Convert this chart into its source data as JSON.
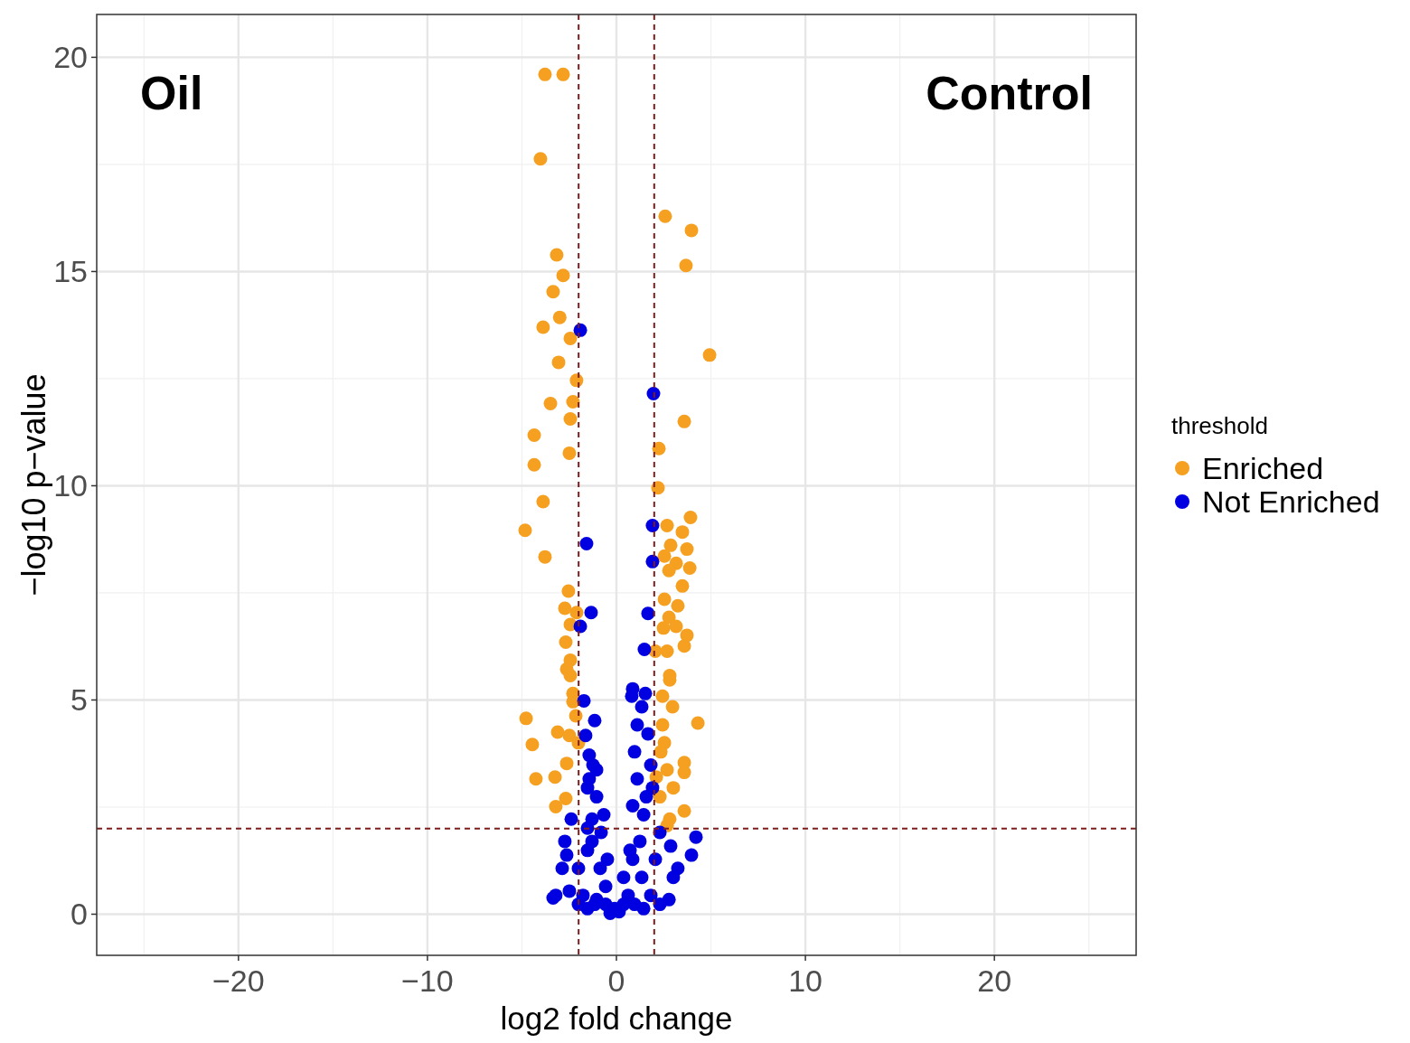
{
  "chart_data": {
    "type": "scatter",
    "xlabel": "log2 fold change",
    "ylabel": "−log10 p−value",
    "legend_title": "threshold",
    "annotations": [
      "Oil",
      "Control"
    ],
    "xlim": [
      -27.5,
      27.5
    ],
    "ylim": [
      -0.96,
      21
    ],
    "xticks": [
      {
        "value": -20,
        "label": "−20"
      },
      {
        "value": -10,
        "label": "−10"
      },
      0,
      10,
      20
    ],
    "yticks": [
      0,
      5,
      10,
      15,
      20
    ],
    "grid": true,
    "legend": "right",
    "marker": "circle",
    "ref_lines": [
      {
        "axis": "x",
        "value": -2,
        "color": "#7f1d1d",
        "line_style": "dashed"
      },
      {
        "axis": "x",
        "value": 2,
        "color": "#7f1d1d",
        "line_style": "dashed"
      },
      {
        "axis": "y",
        "value": 2,
        "color": "#7f1d1d",
        "line_style": "dashed"
      }
    ],
    "series": [
      {
        "name": "Enriched",
        "color": "#f5a020",
        "x": [
          -3.78,
          -2.82,
          -4.02,
          2.58,
          3.97,
          -3.16,
          3.68,
          -2.82,
          -3.35,
          -3.0,
          -3.88,
          -2.44,
          4.93,
          -3.06,
          -2.11,
          -3.49,
          -2.3,
          3.59,
          -2.44,
          -4.35,
          -2.49,
          2.25,
          -4.35,
          2.2,
          -3.88,
          3.92,
          -4.83,
          -3.78,
          2.68,
          3.49,
          2.87,
          3.73,
          2.54,
          3.16,
          3.88,
          2.78,
          3.49,
          2.54,
          3.25,
          2.78,
          3.16,
          3.73,
          2.49,
          3.59,
          2.68,
          2.06,
          2.82,
          2.97,
          2.44,
          -2.54,
          -2.73,
          -2.11,
          -2.44,
          -2.68,
          -2.44,
          -2.63,
          -2.44,
          -2.3,
          -2.3,
          -4.78,
          -4.45,
          -4.26,
          -3.25,
          -3.11,
          -2.49,
          -2.63,
          -2.68,
          -3.21,
          -2.15,
          -2.01,
          2.82,
          2.44,
          2.54,
          2.68,
          2.3,
          2.82,
          3.59,
          3.59,
          4.31,
          3.01,
          3.59,
          2.68,
          2.11,
          2.35
        ],
        "values": [
          19.6,
          19.6,
          17.63,
          16.29,
          15.96,
          15.39,
          15.14,
          14.91,
          14.53,
          13.93,
          13.7,
          13.44,
          13.05,
          12.88,
          12.46,
          11.92,
          11.96,
          11.5,
          11.56,
          11.18,
          10.76,
          10.87,
          10.49,
          9.95,
          9.63,
          9.26,
          8.96,
          8.34,
          9.07,
          8.92,
          8.61,
          8.52,
          8.36,
          8.19,
          8.08,
          8.02,
          7.66,
          7.35,
          7.2,
          6.93,
          6.72,
          6.51,
          6.68,
          6.26,
          6.14,
          6.14,
          5.47,
          4.84,
          5.09,
          7.54,
          7.14,
          7.04,
          6.76,
          6.35,
          5.93,
          5.72,
          5.57,
          5.15,
          4.96,
          4.57,
          3.96,
          3.16,
          3.2,
          4.25,
          4.17,
          3.52,
          2.7,
          2.51,
          4.63,
          4.0,
          5.57,
          4.42,
          4.0,
          3.37,
          2.74,
          2.22,
          3.54,
          3.31,
          4.46,
          2.95,
          2.41,
          2.07,
          3.2,
          3.79
        ]
      },
      {
        "name": "Not Enriched",
        "color": "#0000e0",
        "x": [
          -1.91,
          1.96,
          -1.58,
          1.91,
          1.91,
          -1.34,
          -1.91,
          1.67,
          1.48,
          -1.72,
          0.81,
          1.53,
          -1.15,
          -1.63,
          -1.44,
          -1.24,
          -1.53,
          -1.05,
          -1.29,
          -0.81,
          -1.53,
          -2.01,
          -2.73,
          -2.87,
          -2.49,
          -3.21,
          -3.35,
          -1.77,
          -1.05,
          -0.57,
          -0.1,
          -0.86,
          -0.57,
          -1.15,
          -1.53,
          -2.01,
          -1.29,
          -1.53,
          -2.39,
          -2.63,
          -1.05,
          -1.44,
          -0.67,
          -0.48,
          1.1,
          1.34,
          0.96,
          1.1,
          0.86,
          1.44,
          1.24,
          0.72,
          0.38,
          0.62,
          0.14,
          1.34,
          1.82,
          2.3,
          2.78,
          3.01,
          3.25,
          3.97,
          4.21,
          2.87,
          2.3,
          2.06,
          1.58,
          1.82,
          1.67,
          0.86,
          0.96,
          1.44,
          -0.33,
          0.38,
          0.86,
          1.91
        ],
        "values": [
          13.63,
          12.15,
          8.65,
          9.07,
          8.23,
          7.04,
          6.72,
          7.02,
          6.18,
          4.98,
          5.09,
          5.15,
          4.52,
          4.17,
          3.71,
          3.48,
          2.95,
          2.74,
          2.22,
          1.91,
          1.49,
          1.07,
          1.7,
          1.07,
          0.54,
          0.44,
          0.38,
          0.44,
          0.34,
          0.23,
          0.13,
          1.07,
          0.65,
          0.23,
          0.13,
          0.23,
          1.7,
          2.01,
          2.22,
          1.38,
          3.37,
          3.16,
          2.32,
          1.28,
          4.42,
          4.84,
          3.79,
          3.16,
          2.53,
          2.32,
          1.7,
          1.49,
          0.86,
          0.44,
          0.06,
          0.86,
          0.44,
          0.23,
          0.34,
          0.86,
          1.07,
          1.38,
          1.8,
          1.59,
          1.91,
          1.28,
          2.74,
          3.48,
          4.21,
          5.26,
          0.23,
          0.13,
          0.02,
          0.23,
          1.28,
          2.95
        ]
      }
    ]
  }
}
